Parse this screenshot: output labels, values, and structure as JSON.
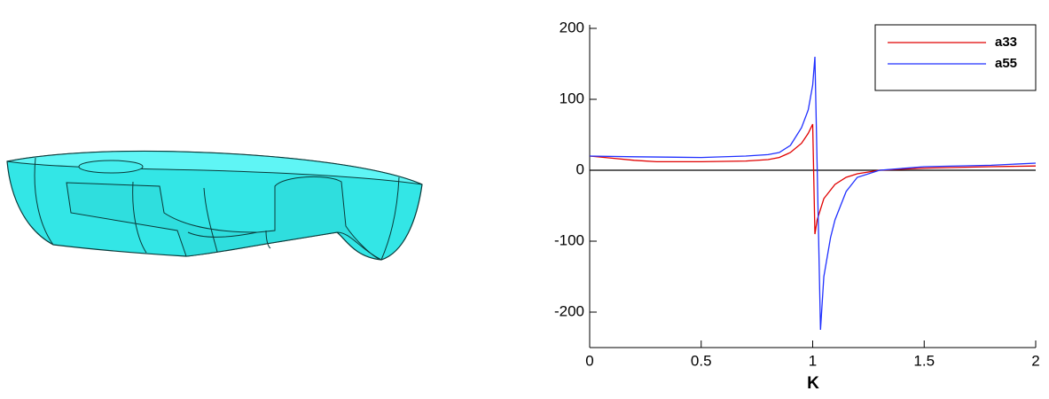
{
  "chart_data": {
    "type": "line",
    "x_label": "K",
    "xlim": [
      0,
      2
    ],
    "xticks": [
      0,
      0.5,
      1,
      1.5,
      2
    ],
    "ylim": [
      -250,
      205
    ],
    "yticks": [
      -200,
      -100,
      0,
      100,
      200
    ],
    "hline": 0,
    "legend": "upper right",
    "series": [
      {
        "name": "a33",
        "color": "#e00000",
        "x": [
          0,
          0.1,
          0.2,
          0.3,
          0.5,
          0.7,
          0.8,
          0.85,
          0.9,
          0.95,
          0.98,
          1.0,
          1.01,
          1.02,
          1.05,
          1.1,
          1.15,
          1.2,
          1.3,
          1.5,
          1.8,
          2
        ],
        "values": [
          20,
          17,
          14,
          12,
          12,
          13,
          15,
          18,
          25,
          38,
          52,
          65,
          -90,
          -70,
          -40,
          -20,
          -10,
          -5,
          0,
          3,
          5,
          6
        ]
      },
      {
        "name": "a55",
        "color": "#2030ff",
        "x": [
          0,
          0.2,
          0.5,
          0.7,
          0.8,
          0.85,
          0.9,
          0.95,
          0.98,
          1.0,
          1.01,
          1.035,
          1.05,
          1.08,
          1.1,
          1.15,
          1.2,
          1.3,
          1.5,
          1.8,
          2
        ],
        "values": [
          20,
          19,
          18,
          20,
          22,
          25,
          35,
          60,
          85,
          120,
          160,
          -225,
          -150,
          -95,
          -70,
          -30,
          -10,
          0,
          5,
          7,
          10
        ]
      }
    ]
  }
}
